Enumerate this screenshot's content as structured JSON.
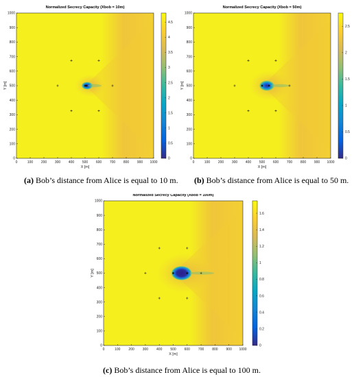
{
  "chart_data": [
    {
      "type": "heatmap",
      "panel_label": "(a)",
      "title": "Normalized Secrecy Capacity (Xbob = 10m)",
      "xlabel": "X [m]",
      "ylabel": "Y [m]",
      "xlim": [
        0,
        1000
      ],
      "ylim": [
        0,
        1000
      ],
      "xticks": [
        0,
        100,
        200,
        300,
        400,
        500,
        600,
        700,
        800,
        900,
        1000
      ],
      "yticks": [
        0,
        100,
        200,
        300,
        400,
        500,
        600,
        700,
        800,
        900,
        1000
      ],
      "colorbar": {
        "min": 0,
        "max": 4.8,
        "ticks": [
          0,
          0.5,
          1,
          1.5,
          2,
          2.5,
          3,
          3.5,
          4,
          4.5
        ]
      },
      "background_value": 4.7,
      "alice": {
        "x": 500,
        "y": 500
      },
      "bob": {
        "x": 510,
        "y": 500
      },
      "eves": [
        {
          "x": 300,
          "y": 500
        },
        {
          "x": 400,
          "y": 673
        },
        {
          "x": 600,
          "y": 673
        },
        {
          "x": 700,
          "y": 500
        },
        {
          "x": 600,
          "y": 327
        },
        {
          "x": 400,
          "y": 327
        }
      ],
      "caption_label": "(a)",
      "caption_text": " Bob’s distance from Alice is equal to 10 m."
    },
    {
      "type": "heatmap",
      "panel_label": "(b)",
      "title": "Normalized Secrecy Capacity (Xbob = 50m)",
      "xlabel": "X [m]",
      "ylabel": "Y [m]",
      "xlim": [
        0,
        1000
      ],
      "ylim": [
        0,
        1000
      ],
      "xticks": [
        0,
        100,
        200,
        300,
        400,
        500,
        600,
        700,
        800,
        900,
        1000
      ],
      "yticks": [
        0,
        100,
        200,
        300,
        400,
        500,
        600,
        700,
        800,
        900,
        1000
      ],
      "colorbar": {
        "min": 0,
        "max": 2.75,
        "ticks": [
          0,
          0.5,
          1,
          1.5,
          2,
          2.5
        ]
      },
      "background_value": 2.7,
      "alice": {
        "x": 500,
        "y": 500
      },
      "bob": {
        "x": 550,
        "y": 500
      },
      "eves": [
        {
          "x": 300,
          "y": 500
        },
        {
          "x": 400,
          "y": 673
        },
        {
          "x": 600,
          "y": 673
        },
        {
          "x": 700,
          "y": 500
        },
        {
          "x": 600,
          "y": 327
        },
        {
          "x": 400,
          "y": 327
        }
      ],
      "caption_label": "(b)",
      "caption_text": " Bob’s distance from Alice is equal to 50 m."
    },
    {
      "type": "heatmap",
      "panel_label": "(c)",
      "title": "Normalized Secrecy Capacity (Xbob = 100m)",
      "xlabel": "X [m]",
      "ylabel": "Y [m]",
      "xlim": [
        0,
        1000
      ],
      "ylim": [
        0,
        1000
      ],
      "xticks": [
        0,
        100,
        200,
        300,
        400,
        500,
        600,
        700,
        800,
        900,
        1000
      ],
      "yticks": [
        0,
        100,
        200,
        300,
        400,
        500,
        600,
        700,
        800,
        900,
        1000
      ],
      "colorbar": {
        "min": 0,
        "max": 1.75,
        "ticks": [
          0,
          0.2,
          0.4,
          0.6,
          0.8,
          1,
          1.2,
          1.4,
          1.6
        ]
      },
      "background_value": 1.7,
      "alice": {
        "x": 500,
        "y": 500
      },
      "bob": {
        "x": 600,
        "y": 500
      },
      "eves": [
        {
          "x": 300,
          "y": 500
        },
        {
          "x": 400,
          "y": 673
        },
        {
          "x": 600,
          "y": 673
        },
        {
          "x": 700,
          "y": 500
        },
        {
          "x": 600,
          "y": 327
        },
        {
          "x": 400,
          "y": 327
        }
      ],
      "caption_label": "(c)",
      "caption_text": " Bob’s distance from Alice is equal to 100 m."
    }
  ],
  "colors": {
    "background": "#f5ef1e",
    "right_tint": "#f0c53a",
    "parula": [
      "#352a87",
      "#0363e1",
      "#1485d4",
      "#06a7c6",
      "#38b99e",
      "#92bf73",
      "#d9ba56",
      "#fcce2e",
      "#f9fb0e"
    ]
  }
}
